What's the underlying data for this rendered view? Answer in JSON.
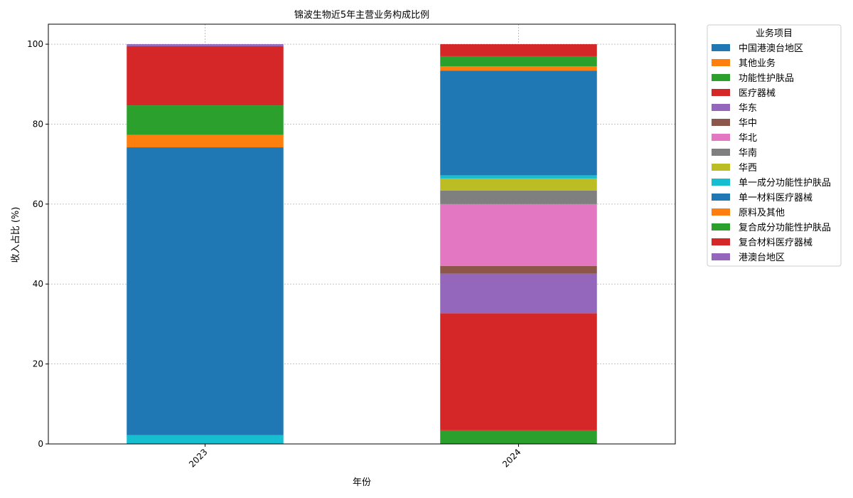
{
  "chart_data": {
    "type": "bar",
    "stacked": true,
    "title": "锦波生物近5年主营业务构成比例",
    "xlabel": "年份",
    "ylabel": "收入占比 (%)",
    "categories": [
      "2023",
      "2024"
    ],
    "ylim": [
      0,
      105
    ],
    "yticks": [
      0,
      20,
      40,
      60,
      80,
      100
    ],
    "grid": true,
    "legend": {
      "title": "业务项目",
      "placement": "outside-right"
    },
    "series": [
      {
        "name": "单一成分功能性护肤品",
        "color": "#17becf",
        "values": [
          2.2,
          0.0
        ]
      },
      {
        "name": "单一材料医疗器械",
        "color": "#1f77b4",
        "values": [
          72.0,
          0.0
        ]
      },
      {
        "name": "原料及其他",
        "color": "#ff7f0e",
        "values": [
          3.1,
          0.0
        ]
      },
      {
        "name": "复合成分功能性护肤品",
        "color": "#2ca02c",
        "values": [
          7.4,
          0.0
        ]
      },
      {
        "name": "复合材料医疗器械",
        "color": "#d62728",
        "values": [
          14.8,
          0.0
        ]
      },
      {
        "name": "港澳台地区",
        "color": "#9467bd",
        "values": [
          0.5,
          0.0
        ]
      },
      {
        "name": "功能性护肤品",
        "color": "#2ca02c",
        "values": [
          0.0,
          3.4
        ]
      },
      {
        "name": "医疗器械",
        "color": "#d62728",
        "values": [
          0.0,
          29.3
        ]
      },
      {
        "name": "华东",
        "color": "#9467bd",
        "values": [
          0.0,
          9.9
        ]
      },
      {
        "name": "华中",
        "color": "#8c564b",
        "values": [
          0.0,
          1.9
        ]
      },
      {
        "name": "华北",
        "color": "#e377c2",
        "values": [
          0.0,
          15.5
        ]
      },
      {
        "name": "华南",
        "color": "#7f7f7f",
        "values": [
          0.0,
          3.4
        ]
      },
      {
        "name": "华西",
        "color": "#bcbd22",
        "values": [
          0.0,
          3.0
        ]
      },
      {
        "name": "单一成分功能性护肤品",
        "color": "#17becf",
        "values": [
          0.0,
          0.8
        ]
      },
      {
        "name": "中国港澳台地区",
        "color": "#1f77b4",
        "values": [
          0.0,
          26.2
        ]
      },
      {
        "name": "其他业务",
        "color": "#ff7f0e",
        "values": [
          0.0,
          1.1
        ]
      },
      {
        "name": "功能性护肤品",
        "color": "#2ca02c",
        "values": [
          0.0,
          2.5
        ]
      },
      {
        "name": "医疗器械",
        "color": "#d62728",
        "values": [
          0.0,
          3.0
        ]
      }
    ],
    "legend_entries": [
      {
        "name": "中国港澳台地区",
        "color": "#1f77b4"
      },
      {
        "name": "其他业务",
        "color": "#ff7f0e"
      },
      {
        "name": "功能性护肤品",
        "color": "#2ca02c"
      },
      {
        "name": "医疗器械",
        "color": "#d62728"
      },
      {
        "name": "华东",
        "color": "#9467bd"
      },
      {
        "name": "华中",
        "color": "#8c564b"
      },
      {
        "name": "华北",
        "color": "#e377c2"
      },
      {
        "name": "华南",
        "color": "#7f7f7f"
      },
      {
        "name": "华西",
        "color": "#bcbd22"
      },
      {
        "name": "单一成分功能性护肤品",
        "color": "#17becf"
      },
      {
        "name": "单一材料医疗器械",
        "color": "#1f77b4"
      },
      {
        "name": "原料及其他",
        "color": "#ff7f0e"
      },
      {
        "name": "复合成分功能性护肤品",
        "color": "#2ca02c"
      },
      {
        "name": "复合材料医疗器械",
        "color": "#d62728"
      },
      {
        "name": "港澳台地区",
        "color": "#9467bd"
      }
    ]
  }
}
